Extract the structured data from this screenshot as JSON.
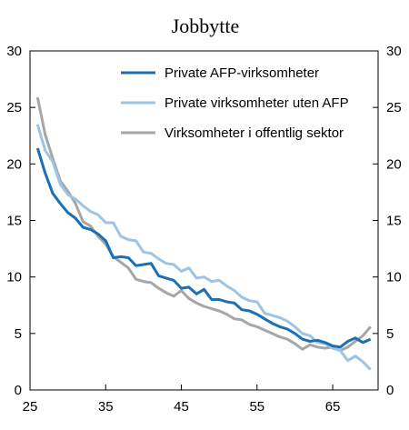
{
  "chart_data": {
    "type": "line",
    "title": "Jobbytte",
    "xlabel": "",
    "ylabel": "",
    "xlim": [
      25,
      71
    ],
    "ylim": [
      0,
      30
    ],
    "x_ticks": [
      "25",
      "35",
      "45",
      "55",
      "65"
    ],
    "y_ticks": [
      "0",
      "5",
      "10",
      "15",
      "20",
      "25",
      "30"
    ],
    "grid": false,
    "legend_position": "top-right",
    "x": [
      26,
      27,
      28,
      29,
      30,
      31,
      32,
      33,
      34,
      35,
      36,
      37,
      38,
      39,
      40,
      41,
      42,
      43,
      44,
      45,
      46,
      47,
      48,
      49,
      50,
      51,
      52,
      53,
      54,
      55,
      56,
      57,
      58,
      59,
      60,
      61,
      62,
      63,
      64,
      65,
      66,
      67,
      68,
      69,
      70
    ],
    "series": [
      {
        "name": "Private AFP-virksomheter",
        "color": "#1a6fb5",
        "values": [
          21.4,
          19.2,
          17.4,
          16.5,
          15.7,
          15.2,
          14.4,
          14.2,
          13.8,
          13.2,
          11.7,
          11.8,
          11.7,
          11.0,
          11.1,
          11.2,
          10.1,
          9.9,
          9.7,
          9.0,
          9.1,
          8.5,
          8.9,
          8.0,
          8.0,
          7.8,
          7.7,
          7.1,
          7.0,
          6.7,
          6.3,
          5.9,
          5.6,
          5.4,
          5.0,
          4.5,
          4.3,
          4.4,
          4.2,
          3.9,
          3.8,
          4.3,
          4.6,
          4.2,
          4.5
        ]
      },
      {
        "name": "Private virksomheter uten AFP",
        "color": "#9cc4e4",
        "values": [
          23.5,
          21.2,
          20.2,
          18.2,
          17.3,
          16.9,
          16.3,
          15.8,
          15.5,
          14.8,
          14.8,
          13.6,
          13.3,
          13.2,
          12.2,
          12.1,
          11.6,
          11.2,
          11.1,
          10.5,
          10.8,
          9.9,
          10.0,
          9.6,
          9.7,
          9.2,
          8.8,
          8.2,
          7.9,
          7.8,
          6.8,
          6.6,
          6.4,
          6.1,
          5.6,
          5.0,
          4.8,
          4.2,
          4.1,
          3.7,
          3.5,
          2.6,
          3.0,
          2.5,
          1.8
        ]
      },
      {
        "name": "Virksomheter i offentlig sektor",
        "color": "#a6a6a6",
        "values": [
          25.9,
          22.6,
          20.5,
          18.5,
          17.6,
          16.5,
          14.9,
          14.5,
          13.6,
          12.9,
          11.8,
          11.3,
          10.8,
          9.8,
          9.6,
          9.5,
          9.0,
          8.6,
          8.3,
          8.8,
          8.1,
          7.7,
          7.4,
          7.2,
          7.0,
          6.7,
          6.3,
          6.2,
          5.8,
          5.6,
          5.3,
          5.0,
          4.7,
          4.5,
          4.1,
          3.6,
          4.0,
          3.8,
          3.7,
          3.8,
          3.5,
          3.8,
          4.3,
          4.8,
          5.6
        ]
      }
    ]
  }
}
